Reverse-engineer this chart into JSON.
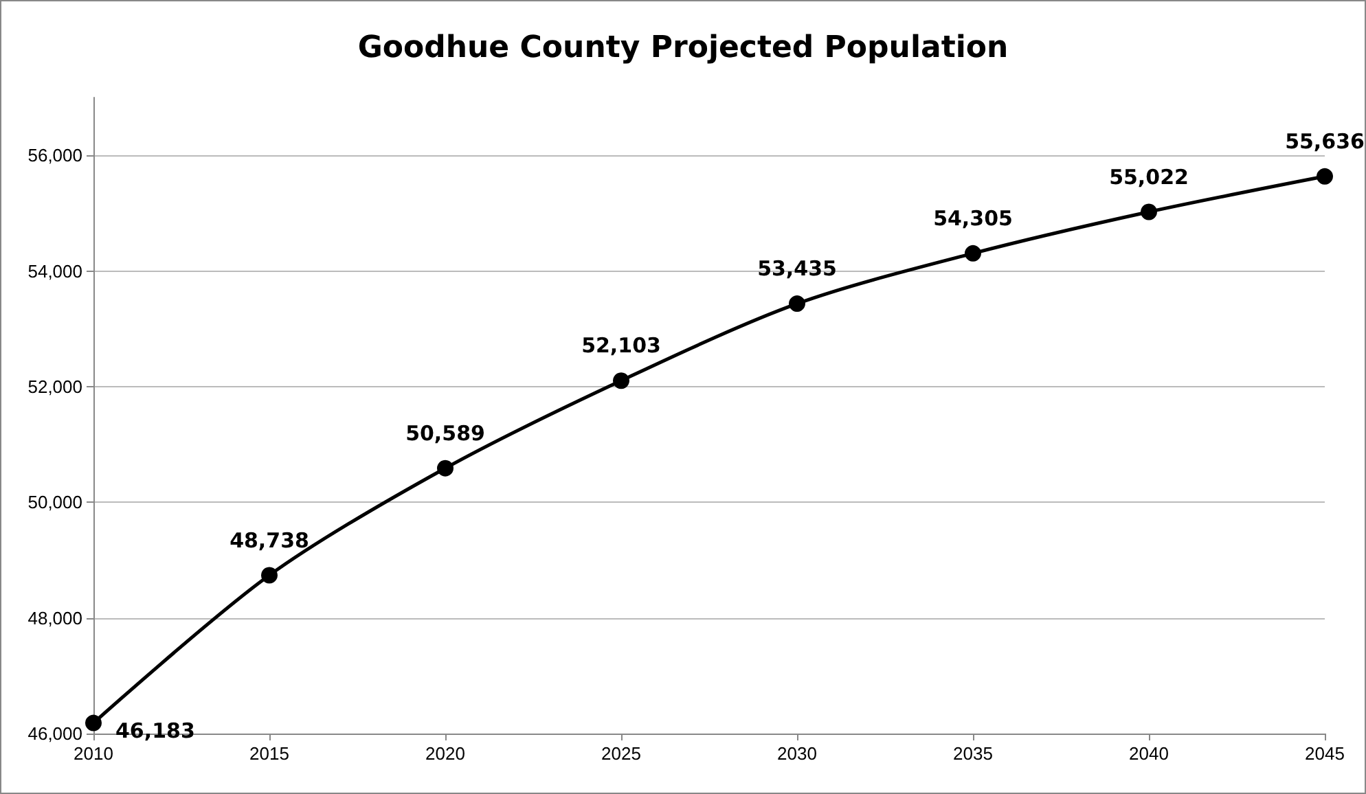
{
  "chart_data": {
    "type": "line",
    "title": "Goodhue County Projected Population",
    "x": [
      2010,
      2015,
      2020,
      2025,
      2030,
      2035,
      2040,
      2045
    ],
    "series": [
      {
        "color": "#000000",
        "values": [
          46183,
          48738,
          50589,
          52103,
          53435,
          54305,
          55022,
          55636
        ],
        "value_labels": [
          "46,183",
          "48,738",
          "50,589",
          "52,103",
          "53,435",
          "54,305",
          "55,022",
          "55,636"
        ]
      }
    ],
    "xlim": [
      2010,
      2045
    ],
    "xticks": [
      2010,
      2015,
      2020,
      2025,
      2030,
      2035,
      2040,
      2045
    ],
    "ylim": [
      46000,
      57000
    ],
    "yticks": [
      {
        "value": 46000,
        "label": "46,000"
      },
      {
        "value": 48000,
        "label": "48,000"
      },
      {
        "value": 50000,
        "label": "50,000"
      },
      {
        "value": 52000,
        "label": "52,000"
      },
      {
        "value": 54000,
        "label": "54,000"
      },
      {
        "value": 56000,
        "label": "56,000"
      }
    ],
    "grid": "y",
    "marker": "circle",
    "line_style": "solid"
  }
}
